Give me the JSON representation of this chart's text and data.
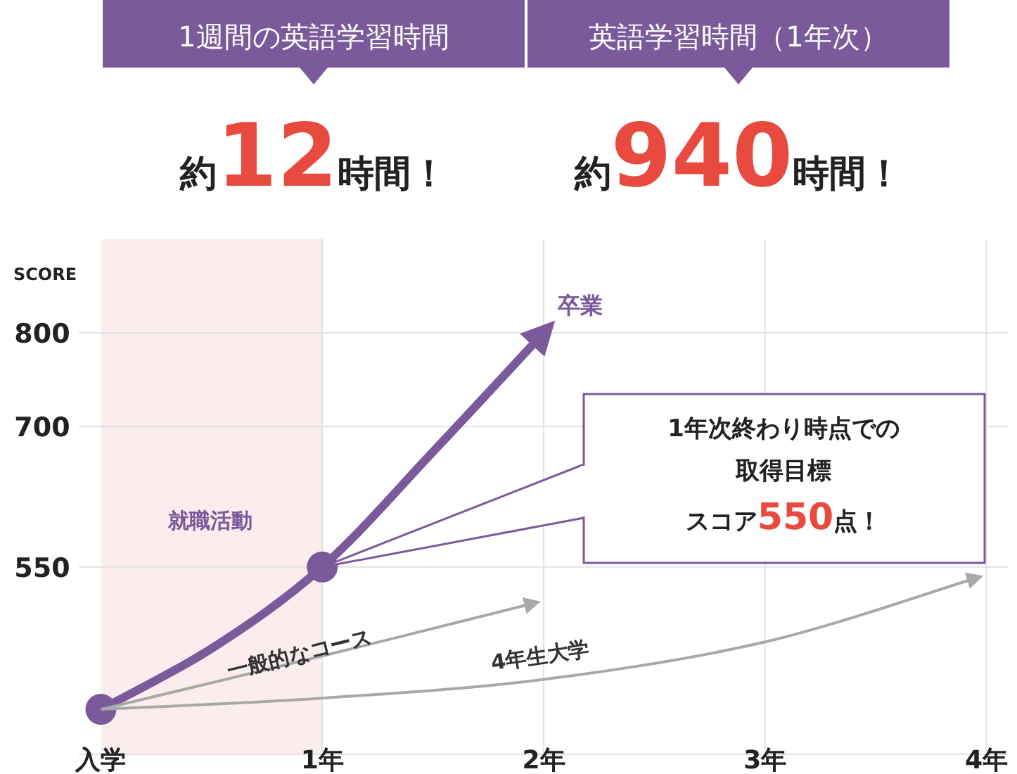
{
  "chart_data": {
    "type": "line",
    "ylabel": "SCORE",
    "xlim": [
      -0.1,
      4.1
    ],
    "ylim": [
      350,
      900
    ],
    "xticks": [
      {
        "value": 0,
        "label": "入学"
      },
      {
        "value": 1,
        "label": "1年"
      },
      {
        "value": 2,
        "label": "2年"
      },
      {
        "value": 3,
        "label": "3年"
      },
      {
        "value": 4,
        "label": "4年"
      }
    ],
    "yticks": [
      550,
      700,
      800
    ],
    "grid": true,
    "line_style": "solid",
    "series": [
      {
        "color": "#7b5a9b",
        "x": [
          0,
          0.5,
          1,
          1.5,
          2
        ],
        "values": [
          398,
          463,
          550,
          673,
          800
        ]
      },
      {
        "type": "scatter",
        "color": "#7b5a9b",
        "x": [
          0,
          1
        ],
        "values": [
          398,
          550
        ],
        "marker": "circle"
      },
      {
        "name": "一般的なコース",
        "color": "#a8a8a8",
        "x": [
          0,
          1,
          1.95
        ],
        "values": [
          398,
          455,
          511
        ]
      },
      {
        "name": "4年生大学",
        "color": "#a8a8a8",
        "x": [
          0,
          1,
          2,
          3,
          3.95
        ],
        "values": [
          398,
          410,
          430,
          470,
          538
        ]
      }
    ],
    "bands": [
      {
        "axis": "x",
        "from": 0,
        "to": 1,
        "label": "就職活動",
        "color": "#fbeded"
      }
    ],
    "annotations": [
      "1週間の英語学習時間",
      "約12時間！",
      "英語学習時間（1年次）",
      "約940時間！",
      {
        "text": "卒業",
        "x": 2,
        "y": 800
      },
      "1年次終わり時点での取得目標スコア550点！"
    ]
  }
}
